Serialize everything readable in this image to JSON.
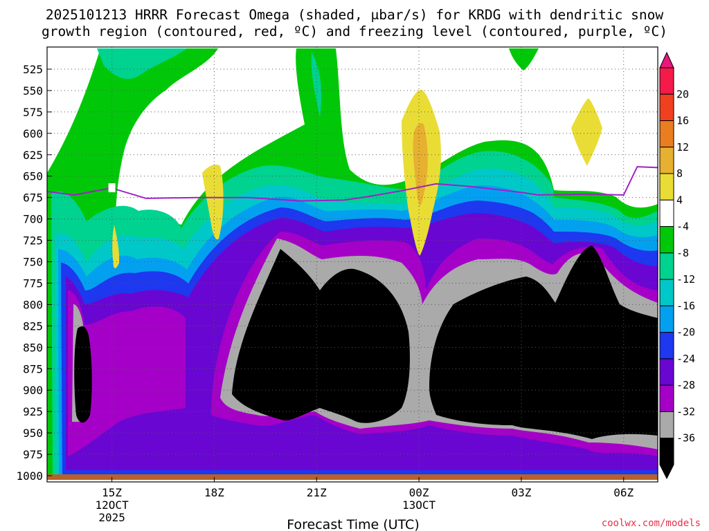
{
  "chart_data": {
    "type": "heatmap",
    "title_lines": [
      "2025101213 HRRR Forecast Omega (shaded, μbar/s) for KRDG with dendritic snow",
      "growth region (contoured, red, ºC) and freezing level (contoured, purple, ºC)"
    ],
    "xlabel": "Forecast Time (UTC)",
    "ylabel": "",
    "y_ticks": [
      "525",
      "550",
      "575",
      "600",
      "625",
      "650",
      "675",
      "700",
      "725",
      "750",
      "775",
      "800",
      "825",
      "850",
      "875",
      "900",
      "925",
      "950",
      "975",
      "1000"
    ],
    "x_ticks": [
      {
        "label": "15Z",
        "sub": [
          "12OCT",
          "2025"
        ]
      },
      {
        "label": "18Z",
        "sub": []
      },
      {
        "label": "21Z",
        "sub": []
      },
      {
        "label": "00Z",
        "sub": [
          "13OCT"
        ]
      },
      {
        "label": "03Z",
        "sub": []
      },
      {
        "label": "06Z",
        "sub": []
      }
    ],
    "ylim": [
      1000,
      505
    ],
    "x_range_hours": [
      -1.9,
      16.0
    ],
    "colorbar": {
      "labels": [
        "20",
        "16",
        "12",
        "8",
        "4",
        "-4",
        "-8",
        "-12",
        "-16",
        "-20",
        "-24",
        "-28",
        "-32",
        "-36"
      ],
      "colors": [
        "#f41a4a",
        "#f04020",
        "#ea7d20",
        "#e7b030",
        "#e9dd35",
        "#ffffff",
        "#00c808",
        "#00d290",
        "#00c8c8",
        "#04a0f0",
        "#1d38ee",
        "#6a06d2",
        "#a500c8",
        "#aaaaaa",
        "#000000"
      ],
      "top_color": "#e8187c"
    },
    "freezing_level": {
      "label": "0",
      "x_hours": [
        -1.9,
        -1.1,
        -0.3,
        0.0,
        1.0,
        2.5,
        4.0,
        5.5,
        6.8,
        7.5,
        8.5,
        9.5,
        10.5,
        12.0,
        12.5,
        14.0,
        15.0,
        15.4,
        16.0
      ],
      "pressure": [
        668,
        672,
        666,
        664,
        676,
        675,
        675,
        679,
        678,
        674,
        667,
        659,
        662,
        669,
        672,
        671,
        672,
        639,
        640
      ]
    },
    "ground_color": "#b5622a"
  },
  "credit": "coolwx.com/models"
}
